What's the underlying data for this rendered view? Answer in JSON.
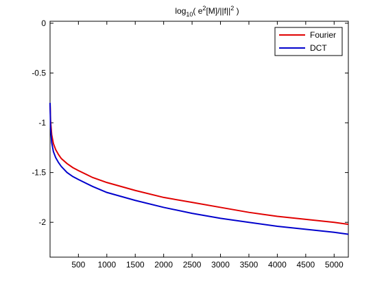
{
  "chart_data": {
    "type": "line",
    "title": "log10( e2[M]/||f||2 )",
    "title_parts": {
      "log": "log",
      "sub": "10",
      "paren_open": "( e",
      "sup1": "2",
      "mid": "[M]/||f||",
      "sup2": "2",
      "paren_close": " )"
    },
    "xlabel": "",
    "ylabel": "",
    "xlim": [
      1,
      5250
    ],
    "ylim": [
      -2.35,
      0.02
    ],
    "x_ticks": [
      500,
      1000,
      1500,
      2000,
      2500,
      3000,
      3500,
      4000,
      4500,
      5000
    ],
    "y_ticks": [
      0,
      -0.5,
      -1,
      -1.5,
      -2
    ],
    "y_tick_labels": [
      "0",
      "-0.5",
      "-1",
      "-1.5",
      "-2"
    ],
    "grid": false,
    "legend_position": "top-right",
    "series": [
      {
        "name": "Fourier",
        "color": "#e00000",
        "x": [
          1,
          10,
          30,
          60,
          100,
          150,
          200,
          300,
          400,
          500,
          750,
          1000,
          1500,
          2000,
          2500,
          3000,
          3500,
          4000,
          4500,
          5000,
          5250
        ],
        "y": [
          -0.8,
          -0.98,
          -1.12,
          -1.21,
          -1.27,
          -1.32,
          -1.36,
          -1.41,
          -1.45,
          -1.48,
          -1.55,
          -1.6,
          -1.68,
          -1.75,
          -1.8,
          -1.85,
          -1.9,
          -1.94,
          -1.97,
          -2.0,
          -2.02
        ]
      },
      {
        "name": "DCT",
        "color": "#0000cc",
        "x": [
          1,
          10,
          30,
          60,
          100,
          150,
          200,
          300,
          400,
          500,
          750,
          1000,
          1500,
          2000,
          2500,
          3000,
          3500,
          4000,
          4500,
          5000,
          5250
        ],
        "y": [
          -0.8,
          -1.05,
          -1.2,
          -1.29,
          -1.35,
          -1.4,
          -1.44,
          -1.5,
          -1.54,
          -1.57,
          -1.64,
          -1.7,
          -1.78,
          -1.85,
          -1.91,
          -1.96,
          -2.0,
          -2.04,
          -2.07,
          -2.1,
          -2.12
        ]
      }
    ]
  }
}
